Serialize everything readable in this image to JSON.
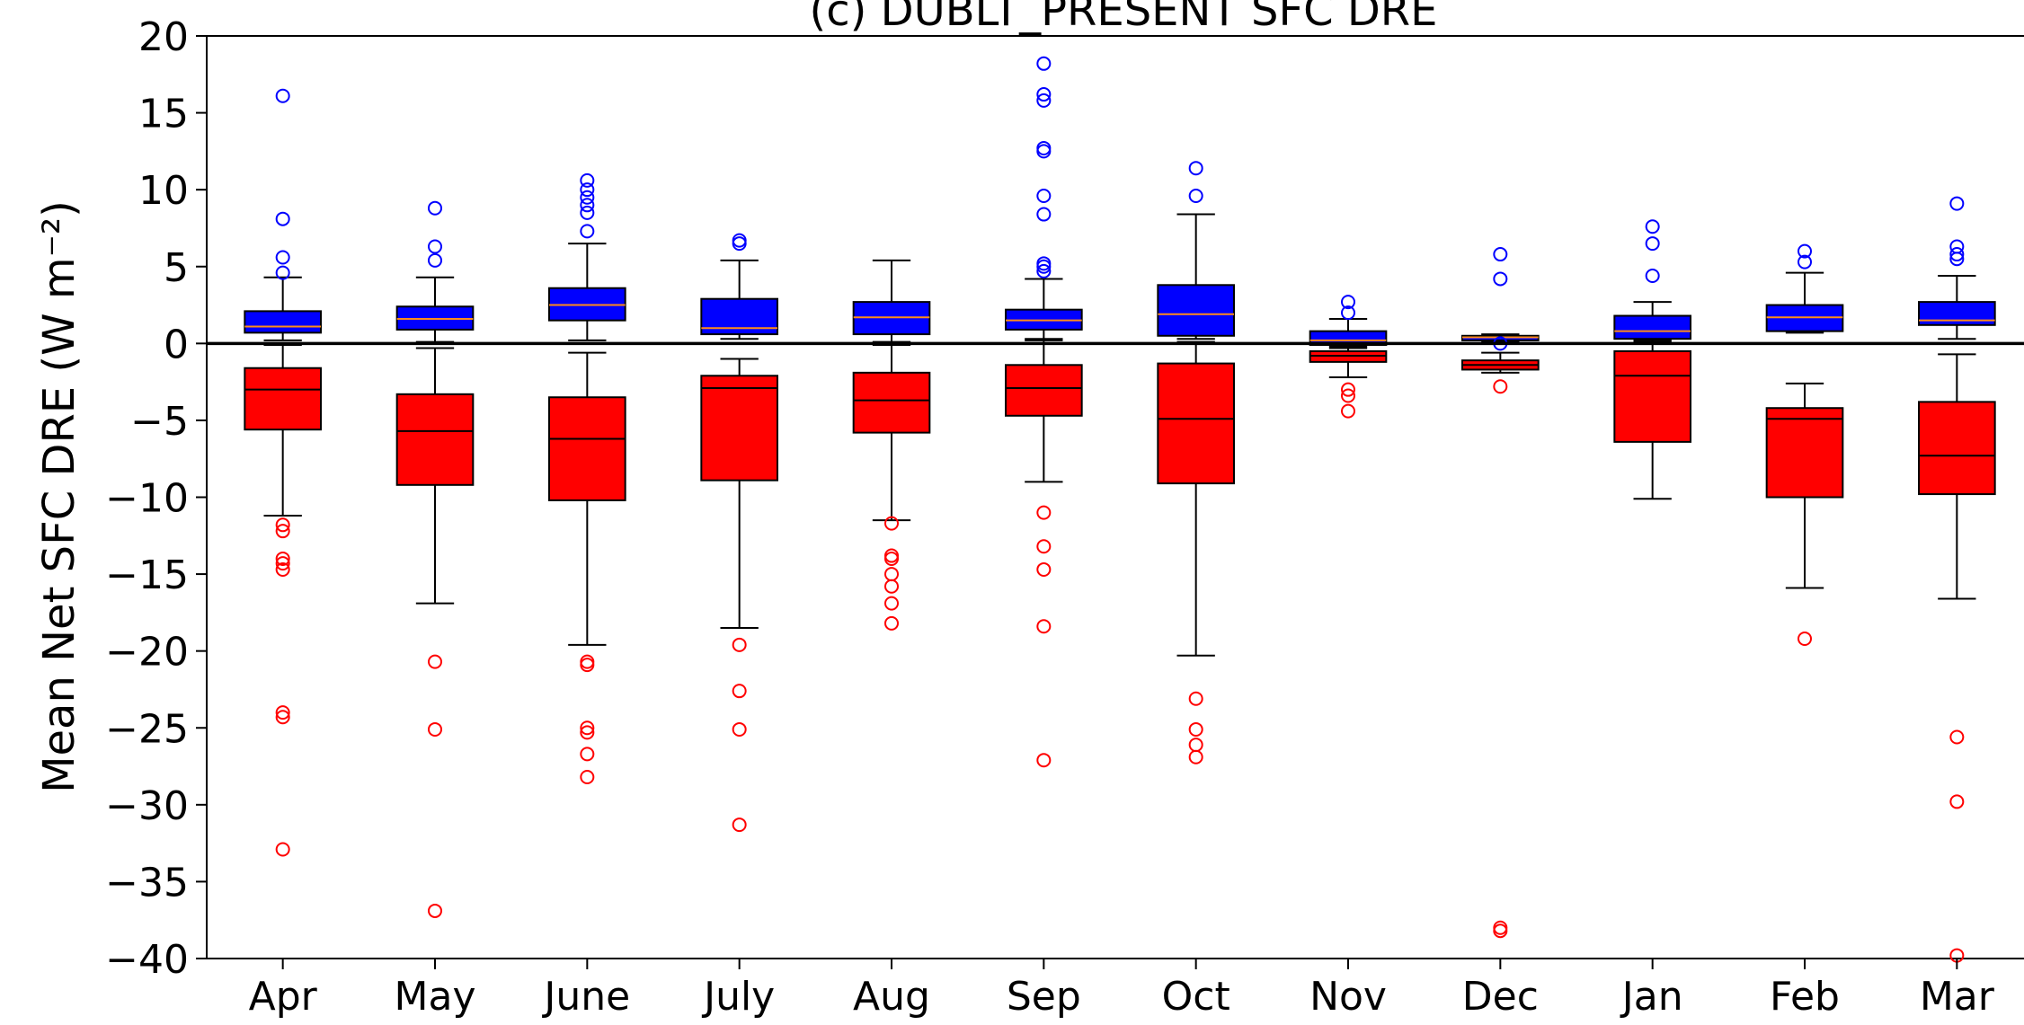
{
  "chart_data": {
    "type": "box",
    "title": "(c) DUBLT_PRESENT SFC DRE",
    "ylabel": "Mean Net SFC DRE (W m⁻²)",
    "categories": [
      "Apr",
      "May",
      "June",
      "July",
      "Aug",
      "Sep",
      "Oct",
      "Nov",
      "Dec",
      "Jan",
      "Feb",
      "Mar"
    ],
    "ylim": [
      -40,
      20
    ],
    "yticks": [
      {
        "value": -40,
        "label": "−40"
      },
      {
        "value": -35,
        "label": "−35"
      },
      {
        "value": -30,
        "label": "−30"
      },
      {
        "value": -25,
        "label": "−25"
      },
      {
        "value": -20,
        "label": "−20"
      },
      {
        "value": -15,
        "label": "−15"
      },
      {
        "value": -10,
        "label": "−10"
      },
      {
        "value": -5,
        "label": "−5"
      },
      0,
      5,
      10,
      15,
      20
    ],
    "hline": 0,
    "series": [
      {
        "color": "#0000ff",
        "median_color": "#ff8c1a",
        "boxes": [
          {
            "whislo": 0.2,
            "q1": 0.7,
            "med": 1.1,
            "q3": 2.1,
            "whishi": 4.3,
            "fliers": [
              16.1,
              8.1,
              5.6,
              4.6
            ]
          },
          {
            "whislo": 0.1,
            "q1": 0.9,
            "med": 1.6,
            "q3": 2.4,
            "whishi": 4.3,
            "fliers": [
              8.8,
              6.3,
              5.4
            ]
          },
          {
            "whislo": 0.2,
            "q1": 1.5,
            "med": 2.5,
            "q3": 3.6,
            "whishi": 6.5,
            "fliers": [
              10.6,
              10.0,
              9.5,
              9.0,
              8.5,
              7.3
            ]
          },
          {
            "whislo": 0.3,
            "q1": 0.6,
            "med": 1.0,
            "q3": 2.9,
            "whishi": 5.4,
            "fliers": [
              6.7,
              6.5
            ]
          },
          {
            "whislo": 0.1,
            "q1": 0.6,
            "med": 1.7,
            "q3": 2.7,
            "whishi": 5.4,
            "fliers": []
          },
          {
            "whislo": 0.3,
            "q1": 0.9,
            "med": 1.5,
            "q3": 2.2,
            "whishi": 4.2,
            "fliers": [
              18.2,
              16.2,
              15.8,
              12.7,
              12.5,
              9.6,
              8.4,
              5.2,
              5.0,
              4.7
            ]
          },
          {
            "whislo": 0.3,
            "q1": 0.5,
            "med": 1.9,
            "q3": 3.8,
            "whishi": 8.4,
            "fliers": [
              11.4,
              9.6
            ]
          },
          {
            "whislo": -0.3,
            "q1": -0.1,
            "med": 0.2,
            "q3": 0.8,
            "whishi": 1.6,
            "fliers": [
              2.7,
              2.0
            ]
          },
          {
            "whislo": 0.1,
            "q1": 0.2,
            "med": 0.4,
            "q3": 0.5,
            "whishi": 0.6,
            "fliers": [
              5.8,
              4.2,
              0.0
            ]
          },
          {
            "whislo": 0.1,
            "q1": 0.3,
            "med": 0.8,
            "q3": 1.8,
            "whishi": 2.7,
            "fliers": [
              7.6,
              6.5,
              4.4
            ]
          },
          {
            "whislo": 0.7,
            "q1": 0.8,
            "med": 1.7,
            "q3": 2.5,
            "whishi": 4.6,
            "fliers": [
              6.0,
              5.3
            ]
          },
          {
            "whislo": 0.3,
            "q1": 1.2,
            "med": 1.5,
            "q3": 2.7,
            "whishi": 4.4,
            "fliers": [
              9.1,
              6.3,
              5.8,
              5.5
            ]
          }
        ]
      },
      {
        "color": "#ff0000",
        "median_color": "#000000",
        "boxes": [
          {
            "whislo": -11.2,
            "q1": -5.6,
            "med": -3.0,
            "q3": -1.6,
            "whishi": -0.1,
            "fliers": [
              -11.8,
              -12.2,
              -14.0,
              -14.3,
              -14.7,
              -24.0,
              -24.3,
              -32.9
            ]
          },
          {
            "whislo": -16.9,
            "q1": -9.2,
            "med": -5.7,
            "q3": -3.3,
            "whishi": -0.3,
            "fliers": [
              -20.7,
              -25.1,
              -36.9
            ]
          },
          {
            "whislo": -19.6,
            "q1": -10.2,
            "med": -6.2,
            "q3": -3.5,
            "whishi": -0.6,
            "fliers": [
              -20.7,
              -20.9,
              -25.0,
              -25.3,
              -26.7,
              -28.2
            ]
          },
          {
            "whislo": -18.5,
            "q1": -8.9,
            "med": -2.9,
            "q3": -2.1,
            "whishi": -1.0,
            "fliers": [
              -19.6,
              -22.6,
              -25.1,
              -31.3
            ]
          },
          {
            "whislo": -11.5,
            "q1": -5.8,
            "med": -3.7,
            "q3": -1.9,
            "whishi": -0.1,
            "fliers": [
              -11.7,
              -13.8,
              -14.0,
              -15.0,
              -15.8,
              -16.9,
              -18.2
            ]
          },
          {
            "whislo": -9.0,
            "q1": -4.7,
            "med": -2.9,
            "q3": -1.4,
            "whishi": 0.2,
            "fliers": [
              -11.0,
              -13.2,
              -14.7,
              -18.4,
              -27.1
            ]
          },
          {
            "whislo": -20.3,
            "q1": -9.1,
            "med": -4.9,
            "q3": -1.3,
            "whishi": 0.1,
            "fliers": [
              -23.1,
              -25.1,
              -26.1,
              -26.9
            ]
          },
          {
            "whislo": -2.2,
            "q1": -1.2,
            "med": -0.8,
            "q3": -0.5,
            "whishi": -0.2,
            "fliers": [
              -3.0,
              -3.4,
              -4.4
            ]
          },
          {
            "whislo": -1.9,
            "q1": -1.7,
            "med": -1.4,
            "q3": -1.1,
            "whishi": -0.6,
            "fliers": [
              -2.8,
              -38.0,
              -38.2
            ]
          },
          {
            "whislo": -10.1,
            "q1": -6.4,
            "med": -2.1,
            "q3": -0.5,
            "whishi": 0.2,
            "fliers": []
          },
          {
            "whislo": -15.9,
            "q1": -10.0,
            "med": -4.9,
            "q3": -4.2,
            "whishi": -2.6,
            "fliers": [
              -19.2
            ]
          },
          {
            "whislo": -16.6,
            "q1": -9.8,
            "med": -7.3,
            "q3": -3.8,
            "whishi": -0.7,
            "fliers": [
              -25.6,
              -29.8,
              -39.8
            ]
          }
        ]
      }
    ]
  }
}
